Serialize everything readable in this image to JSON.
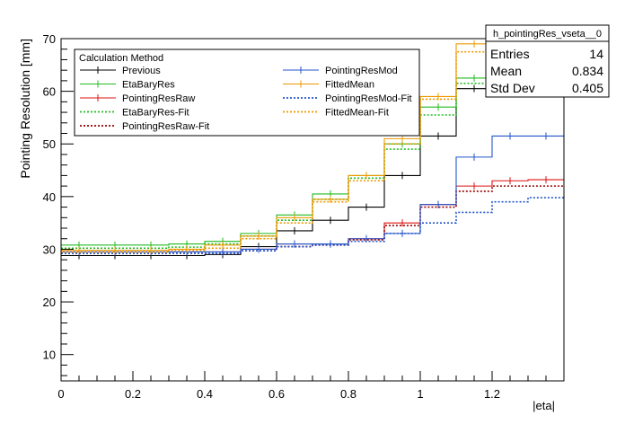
{
  "chart_data": {
    "type": "line",
    "style": "step-histogram",
    "title": "",
    "xlabel": "|eta|",
    "ylabel": "Pointing Resolution [mm]",
    "xlim": [
      0,
      1.4
    ],
    "ylim": [
      5,
      70
    ],
    "x_ticks": [
      0,
      0.2,
      0.4,
      0.6,
      0.8,
      1,
      1.2
    ],
    "x_tick_labels": [
      "0",
      "0.2",
      "0.4",
      "0.6",
      "0.8",
      "1",
      "1.2"
    ],
    "y_ticks": [
      10,
      20,
      30,
      40,
      50,
      60,
      70
    ],
    "y_tick_labels": [
      "10",
      "20",
      "30",
      "40",
      "50",
      "60",
      "70"
    ],
    "bin_edges": [
      0,
      0.1,
      0.2,
      0.3,
      0.4,
      0.5,
      0.6,
      0.7,
      0.8,
      0.9,
      1.0,
      1.1,
      1.2,
      1.3,
      1.4
    ],
    "legend_title": "Calculation Method",
    "legend_position": "top-left",
    "series": [
      {
        "name": "Previous",
        "color": "#000000",
        "dash": "solid",
        "values": [
          28.8,
          28.8,
          28.8,
          28.8,
          29.0,
          30.5,
          33.5,
          35.5,
          38.0,
          44.0,
          51.5,
          60.5,
          60.5,
          60.5
        ]
      },
      {
        "name": "EtaBaryRes",
        "color": "#22bb22",
        "dash": "solid",
        "values": [
          30.8,
          30.8,
          30.8,
          31.0,
          31.5,
          33.0,
          36.5,
          40.5,
          44.0,
          50.0,
          57.0,
          62.5,
          65.0,
          66.0
        ]
      },
      {
        "name": "PointingResRaw",
        "color": "#dd1111",
        "dash": "solid",
        "values": [
          29.5,
          29.5,
          29.5,
          29.5,
          29.5,
          30.0,
          31.0,
          31.0,
          32.0,
          35.0,
          38.5,
          42.0,
          43.0,
          43.2
        ]
      },
      {
        "name": "EtaBaryRes-Fit",
        "color": "#22bb22",
        "dash": "dotted",
        "values": [
          30.2,
          30.2,
          30.2,
          30.4,
          31.0,
          32.5,
          35.5,
          39.5,
          43.5,
          49.0,
          55.5,
          61.5,
          64.5,
          66.0
        ]
      },
      {
        "name": "PointingResRaw-Fit",
        "color": "#990000",
        "dash": "dotted",
        "values": [
          29.2,
          29.2,
          29.2,
          29.2,
          29.2,
          29.7,
          30.5,
          30.8,
          31.8,
          34.5,
          38.0,
          41.0,
          42.0,
          42.0
        ]
      },
      {
        "name": "PointingResMod",
        "color": "#2255cc",
        "dash": "solid",
        "values": [
          29.5,
          29.5,
          29.5,
          29.5,
          29.5,
          30.0,
          31.0,
          31.0,
          32.0,
          33.0,
          38.5,
          47.5,
          51.5,
          51.5
        ]
      },
      {
        "name": "FittedMean",
        "color": "#ee9900",
        "dash": "solid",
        "values": [
          29.8,
          29.8,
          29.8,
          30.0,
          30.8,
          32.5,
          36.0,
          39.5,
          44.0,
          51.0,
          59.0,
          69.0,
          70.0,
          70.0
        ]
      },
      {
        "name": "PointingResMod-Fit",
        "color": "#2255cc",
        "dash": "dotted",
        "values": [
          29.2,
          29.2,
          29.2,
          29.2,
          29.2,
          29.7,
          30.5,
          30.8,
          31.5,
          33.0,
          35.0,
          37.0,
          39.0,
          39.8
        ]
      },
      {
        "name": "FittedMean-Fit",
        "color": "#ee9900",
        "dash": "dotted",
        "values": [
          29.5,
          29.5,
          29.5,
          29.8,
          30.2,
          32.0,
          35.0,
          39.0,
          43.0,
          50.0,
          58.5,
          67.5,
          70.0,
          70.0
        ]
      }
    ],
    "stats_box": {
      "title": "h_pointingRes_vseta__0",
      "rows": [
        {
          "label": "Entries",
          "value": "14"
        },
        {
          "label": "Mean",
          "value": "0.834"
        },
        {
          "label": "Std Dev",
          "value": "0.405"
        }
      ]
    }
  }
}
